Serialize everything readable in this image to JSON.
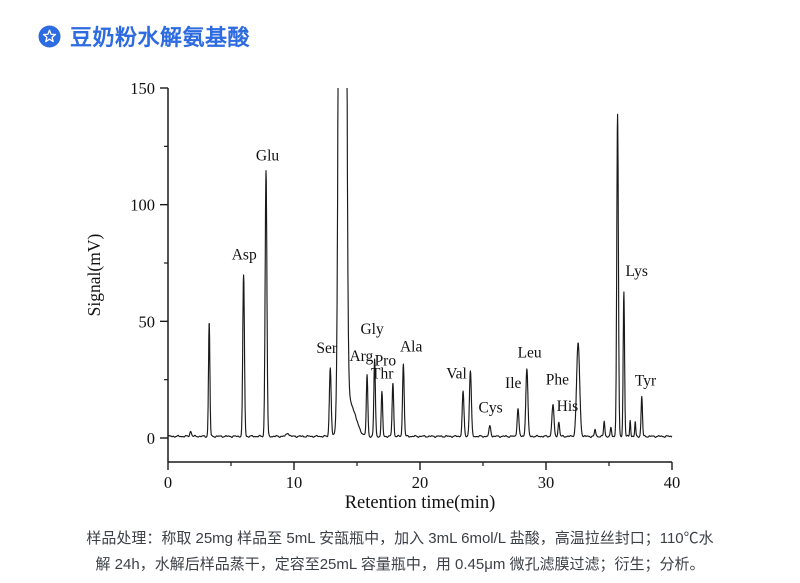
{
  "header": {
    "icon": "star-badge-icon",
    "title": "豆奶粉水解氨基酸",
    "accent_color": "#2d6be0"
  },
  "chart_data": {
    "type": "line",
    "title": "",
    "xlabel": "Retention time(min)",
    "ylabel": "Signal(mV)",
    "xlim": [
      0,
      40
    ],
    "ylim": [
      0,
      150
    ],
    "x_major_ticks": [
      0,
      10,
      20,
      30,
      40
    ],
    "x_minor_ticks": [
      5,
      15,
      25,
      35
    ],
    "y_major_ticks": [
      0,
      50,
      100,
      150
    ],
    "y_minor_ticks": [
      25,
      75,
      125
    ],
    "grid": false,
    "legend": "none",
    "line_color": "#1a1a1a",
    "baseline_mV": 0.7,
    "peaks": [
      {
        "name": "",
        "t": 1.8,
        "mV": 2.2,
        "w": 0.07
      },
      {
        "name": "",
        "t": 3.27,
        "mV": 49,
        "w": 0.055
      },
      {
        "name": "Asp",
        "t": 6.0,
        "mV": 69,
        "w": 0.065
      },
      {
        "name": "Glu",
        "t": 7.78,
        "mV": 114,
        "w": 0.07
      },
      {
        "name": "",
        "t": 9.5,
        "mV": 1.5,
        "w": 0.1
      },
      {
        "name": "Ser",
        "t": 12.88,
        "mV": 29.5,
        "w": 0.07
      },
      {
        "name": "off-scale reagent peak",
        "t": 13.85,
        "mV": 150,
        "w": 0.17,
        "offscale": true
      },
      {
        "name": "",
        "t": 14.45,
        "mV": 14,
        "w": 0.45
      },
      {
        "name": "Arg",
        "t": 15.8,
        "mV": 26,
        "w": 0.06
      },
      {
        "name": "Gly",
        "t": 16.4,
        "mV": 33,
        "w": 0.06
      },
      {
        "name": "Thr",
        "t": 16.98,
        "mV": 19,
        "w": 0.055
      },
      {
        "name": "Pro",
        "t": 17.85,
        "mV": 23,
        "w": 0.06
      },
      {
        "name": "Ala",
        "t": 18.68,
        "mV": 31,
        "w": 0.065
      },
      {
        "name": "Val",
        "t": 23.42,
        "mV": 19,
        "w": 0.07
      },
      {
        "name": "",
        "t": 24.0,
        "mV": 28,
        "w": 0.075
      },
      {
        "name": "Cys",
        "t": 25.55,
        "mV": 4.5,
        "w": 0.07
      },
      {
        "name": "Ile",
        "t": 27.78,
        "mV": 12,
        "w": 0.07
      },
      {
        "name": "Leu",
        "t": 28.48,
        "mV": 29,
        "w": 0.08
      },
      {
        "name": "Phe",
        "t": 30.55,
        "mV": 13.5,
        "w": 0.08
      },
      {
        "name": "His",
        "t": 31.02,
        "mV": 6,
        "w": 0.06
      },
      {
        "name": "",
        "t": 32.55,
        "mV": 40,
        "w": 0.12
      },
      {
        "name": "",
        "t": 33.9,
        "mV": 3,
        "w": 0.05
      },
      {
        "name": "",
        "t": 34.62,
        "mV": 6.5,
        "w": 0.05
      },
      {
        "name": "",
        "t": 35.15,
        "mV": 3.5,
        "w": 0.05
      },
      {
        "name": "",
        "t": 35.68,
        "mV": 138,
        "w": 0.065
      },
      {
        "name": "Lys",
        "t": 36.18,
        "mV": 62,
        "w": 0.055
      },
      {
        "name": "",
        "t": 36.68,
        "mV": 7,
        "w": 0.04
      },
      {
        "name": "",
        "t": 37.08,
        "mV": 6,
        "w": 0.04
      },
      {
        "name": "Tyr",
        "t": 37.6,
        "mV": 17,
        "w": 0.055
      }
    ],
    "peak_labels": [
      {
        "text": "Glu",
        "t": 7.9,
        "mV": 119
      },
      {
        "text": "Asp",
        "t": 6.05,
        "mV": 76.5
      },
      {
        "text": "Ser",
        "t": 12.6,
        "mV": 36.5
      },
      {
        "text": "Gly",
        "t": 16.2,
        "mV": 44.5
      },
      {
        "text": "Arg",
        "t": 15.35,
        "mV": 33
      },
      {
        "text": "Thr",
        "t": 17.0,
        "mV": 25.5
      },
      {
        "text": "Pro",
        "t": 17.25,
        "mV": 31
      },
      {
        "text": "Ala",
        "t": 19.3,
        "mV": 37
      },
      {
        "text": "Val",
        "t": 22.9,
        "mV": 25.5
      },
      {
        "text": "Cys",
        "t": 25.6,
        "mV": 11
      },
      {
        "text": "Ile",
        "t": 27.4,
        "mV": 21.5
      },
      {
        "text": "Leu",
        "t": 28.7,
        "mV": 34.5
      },
      {
        "text": "Phe",
        "t": 30.9,
        "mV": 23
      },
      {
        "text": "His",
        "t": 31.7,
        "mV": 11.5
      },
      {
        "text": "Lys",
        "t": 37.2,
        "mV": 69.5
      },
      {
        "text": "Tyr",
        "t": 37.9,
        "mV": 22.5
      }
    ]
  },
  "caption": {
    "line1": "样品处理：称取 25mg 样品至 5mL 安瓿瓶中，加入 3mL 6mol/L 盐酸，高温拉丝封口；110℃水",
    "line2": "解 24h，水解后样品蒸干，定容至25mL 容量瓶中，用 0.45μm 微孔滤膜过滤；衍生；分析。"
  }
}
